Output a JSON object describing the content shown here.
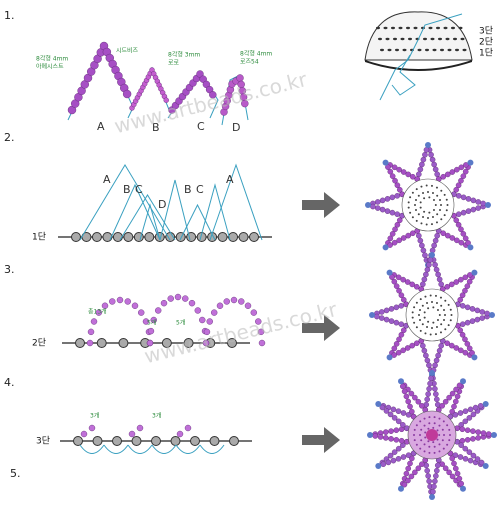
{
  "steps": [
    "1.",
    "2.",
    "3.",
    "4.",
    "5."
  ],
  "step1": {
    "strands": [
      "A",
      "B",
      "C",
      "D"
    ],
    "labels": [
      [
        "8각형 4mm",
        "아메시스트"
      ],
      [
        "시드비즈"
      ],
      [
        "8각형 3mm",
        "로로"
      ],
      [
        "8각형 4mm",
        "로즈54"
      ]
    ],
    "dome_rows": [
      "3단",
      "2단",
      "1단"
    ]
  },
  "step2": {
    "row": "1단",
    "letters": [
      "A",
      "B",
      "C",
      "D",
      "B",
      "C",
      "A"
    ]
  },
  "step3": {
    "row": "2단",
    "counts": [
      "총13개",
      "5개",
      "5개"
    ]
  },
  "step4": {
    "row": "3단",
    "counts": [
      "3개",
      "3개"
    ]
  },
  "watermark": "www.artbeads.co.kr"
}
